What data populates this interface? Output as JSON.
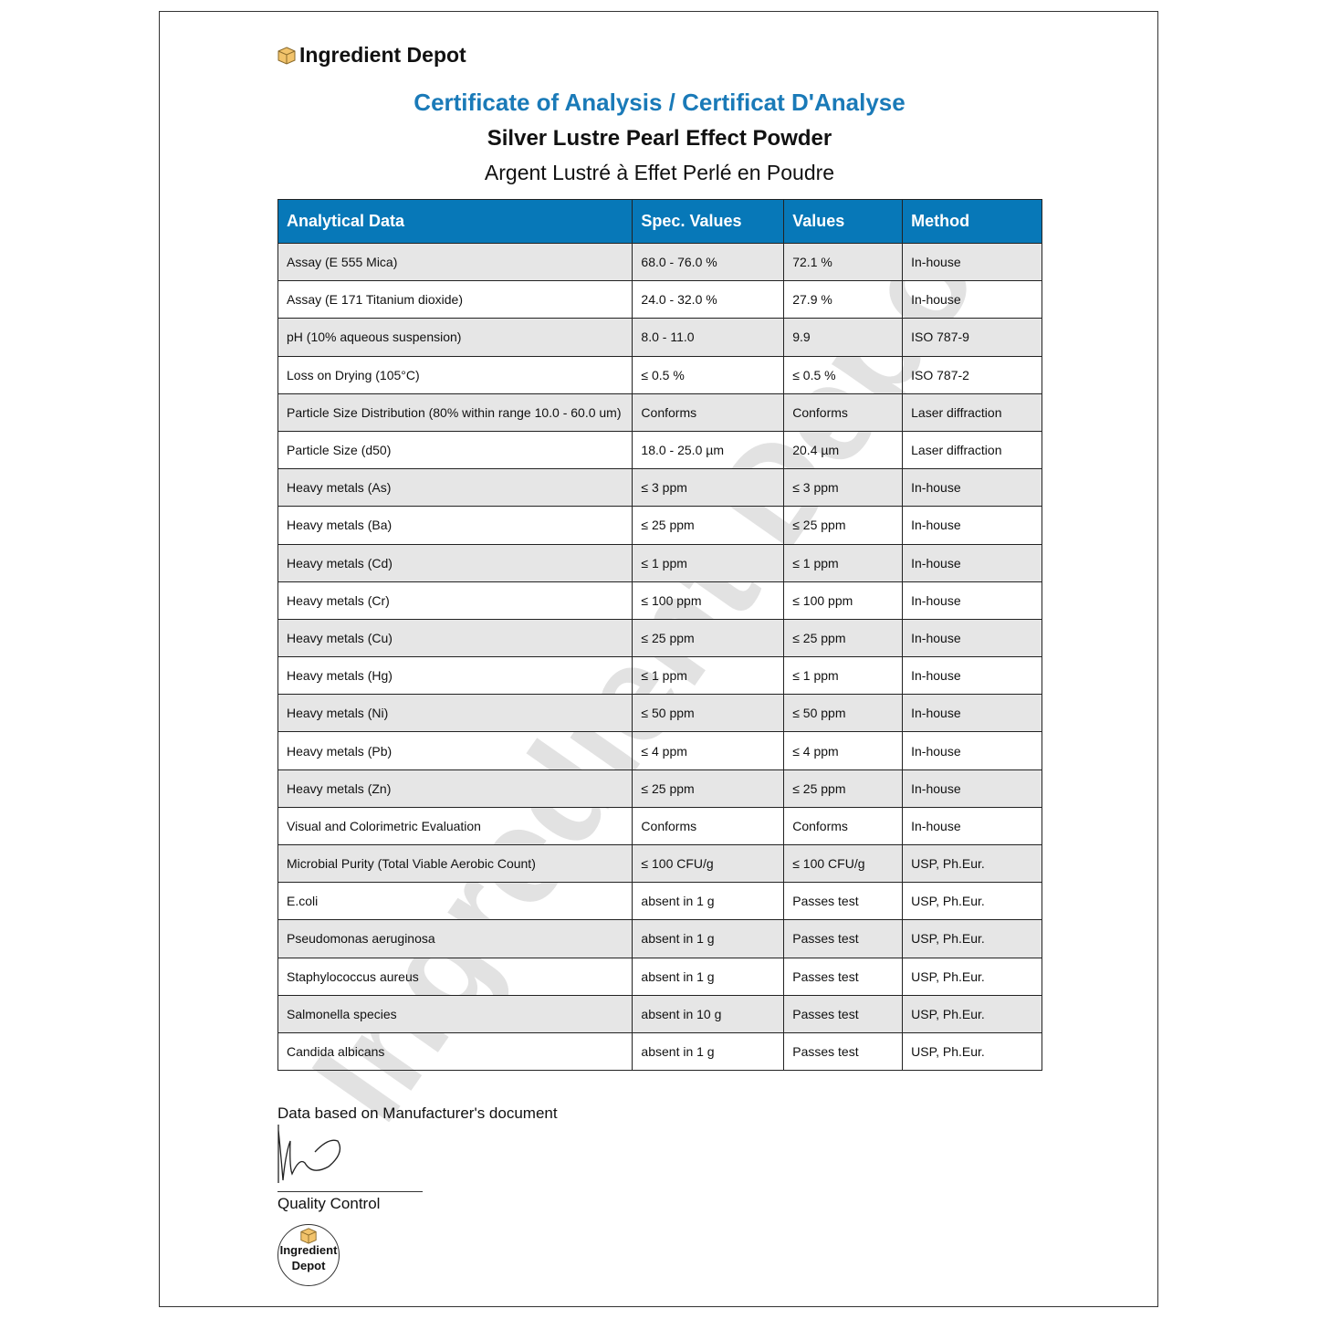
{
  "brand": {
    "name": "Ingredient Depot",
    "icon": "box-icon",
    "seal_line1": "Ingredient",
    "seal_line2": "Depot"
  },
  "title": "Certificate of Analysis / Certificat D'Analyse",
  "product_en": "Silver Lustre Pearl Effect Powder",
  "product_fr": "Argent Lustré à Effet Perlé en Poudre",
  "colors": {
    "accent": "#1a7ab8",
    "header_bg": "#0778b8",
    "alt_row": "#e6e6e6"
  },
  "table": {
    "headers": [
      "Analytical Data",
      "Spec. Values",
      "Values",
      "Method"
    ],
    "rows": [
      [
        "Assay (E 555 Mica)",
        "68.0 - 76.0 %",
        "72.1 %",
        "In-house"
      ],
      [
        "Assay (E 171 Titanium dioxide)",
        "24.0 - 32.0 %",
        "27.9 %",
        "In-house"
      ],
      [
        "pH (10% aqueous suspension)",
        "8.0 - 11.0",
        "9.9",
        "ISO 787-9"
      ],
      [
        "Loss on Drying (105°C)",
        "≤ 0.5 %",
        "≤ 0.5 %",
        "ISO 787-2"
      ],
      [
        "Particle Size Distribution (80% within range 10.0 - 60.0 um)",
        "Conforms",
        "Conforms",
        "Laser diffraction"
      ],
      [
        "Particle Size (d50)",
        "18.0 - 25.0 µm",
        "20.4 µm",
        "Laser diffraction"
      ],
      [
        "Heavy metals (As)",
        "≤ 3 ppm",
        "≤ 3 ppm",
        "In-house"
      ],
      [
        "Heavy metals (Ba)",
        "≤ 25 ppm",
        "≤ 25 ppm",
        "In-house"
      ],
      [
        "Heavy metals (Cd)",
        "≤ 1 ppm",
        "≤ 1 ppm",
        "In-house"
      ],
      [
        "Heavy metals (Cr)",
        "≤ 100 ppm",
        "≤ 100 ppm",
        "In-house"
      ],
      [
        "Heavy metals (Cu)",
        "≤ 25 ppm",
        "≤ 25 ppm",
        "In-house"
      ],
      [
        "Heavy metals (Hg)",
        "≤ 1 ppm",
        "≤ 1 ppm",
        "In-house"
      ],
      [
        "Heavy metals (Ni)",
        "≤ 50 ppm",
        "≤ 50 ppm",
        "In-house"
      ],
      [
        "Heavy metals (Pb)",
        "≤ 4 ppm",
        "≤ 4 ppm",
        "In-house"
      ],
      [
        "Heavy metals (Zn)",
        "≤ 25 ppm",
        "≤ 25 ppm",
        "In-house"
      ],
      [
        "Visual and Colorimetric Evaluation",
        "Conforms",
        "Conforms",
        "In-house"
      ],
      [
        "Microbial Purity (Total Viable Aerobic Count)",
        "≤ 100 CFU/g",
        "≤ 100 CFU/g",
        "USP, Ph.Eur."
      ],
      [
        "E.coli",
        "absent in 1 g",
        "Passes test",
        "USP, Ph.Eur."
      ],
      [
        "Pseudomonas aeruginosa",
        "absent in 1 g",
        "Passes test",
        "USP, Ph.Eur."
      ],
      [
        "Staphylococcus aureus",
        "absent in 1 g",
        "Passes test",
        "USP, Ph.Eur."
      ],
      [
        "Salmonella species",
        "absent in 10 g",
        "Passes test",
        "USP, Ph.Eur."
      ],
      [
        "Candida albicans",
        "absent in 1 g",
        "Passes test",
        "USP, Ph.Eur."
      ]
    ]
  },
  "note": "Data based on Manufacturer's document",
  "signature_label": "Quality Control",
  "watermark": "Ingredient Depot"
}
